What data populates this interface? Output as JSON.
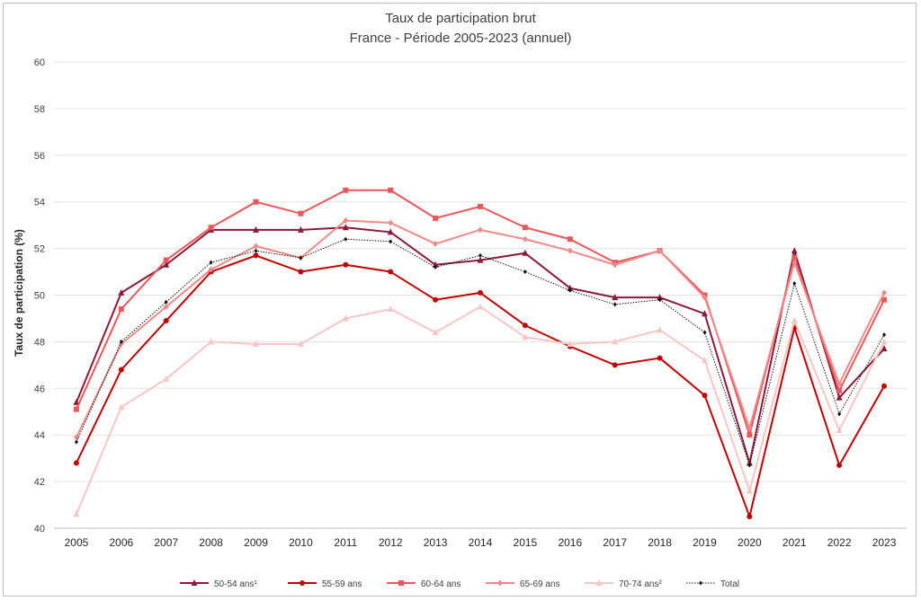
{
  "chart_data": {
    "type": "line",
    "title": "Taux de participation brut",
    "subtitle": "France - Période 2005-2023 (annuel)",
    "xlabel": "",
    "ylabel": "Taux de participation (%)",
    "ylim": [
      40,
      60
    ],
    "yticks": [
      "40",
      "42",
      "44",
      "46",
      "48",
      "50",
      "52",
      "54",
      "56",
      "58",
      "60"
    ],
    "categories": [
      "2005",
      "2006",
      "2007",
      "2008",
      "2009",
      "2010",
      "2011",
      "2012",
      "2013",
      "2014",
      "2015",
      "2016",
      "2017",
      "2018",
      "2019",
      "2020",
      "2021",
      "2022",
      "2023"
    ],
    "grid": true,
    "legend_position": "bottom",
    "series": [
      {
        "name": "50-54 ans¹",
        "color": "#8b1a3a",
        "marker": "triangle",
        "dash": "solid",
        "values": [
          45.4,
          50.1,
          51.3,
          52.8,
          52.8,
          52.8,
          52.9,
          52.7,
          51.3,
          51.5,
          51.8,
          50.3,
          49.9,
          49.9,
          49.2,
          42.8,
          51.9,
          45.6,
          47.7
        ]
      },
      {
        "name": "55-59 ans",
        "color": "#c00000",
        "marker": "circle",
        "dash": "solid",
        "values": [
          42.8,
          46.8,
          48.9,
          51.0,
          51.7,
          51.0,
          51.3,
          51.0,
          49.8,
          50.1,
          48.7,
          47.8,
          47.0,
          47.3,
          45.7,
          40.5,
          48.6,
          42.7,
          46.1
        ]
      },
      {
        "name": "60-64 ans",
        "color": "#e8585a",
        "marker": "square",
        "dash": "solid",
        "values": [
          45.1,
          49.4,
          51.5,
          52.9,
          54.0,
          53.5,
          54.5,
          54.5,
          53.3,
          53.8,
          52.9,
          52.4,
          51.4,
          51.9,
          50.0,
          44.0,
          51.6,
          45.9,
          49.8
        ]
      },
      {
        "name": "65-69 ans",
        "color": "#f08a8a",
        "marker": "diamond",
        "dash": "solid",
        "values": [
          43.9,
          47.9,
          49.5,
          51.1,
          52.1,
          51.6,
          53.2,
          53.1,
          52.2,
          52.8,
          52.4,
          51.9,
          51.3,
          51.9,
          49.9,
          44.3,
          51.4,
          46.2,
          50.1
        ]
      },
      {
        "name": "70-74 ans²",
        "color": "#f6c6c4",
        "marker": "triangle",
        "dash": "solid",
        "values": [
          40.6,
          45.2,
          46.4,
          48.0,
          47.9,
          47.9,
          49.0,
          49.4,
          48.4,
          49.5,
          48.2,
          47.9,
          48.0,
          48.5,
          47.2,
          41.6,
          48.9,
          44.2,
          48.0
        ]
      },
      {
        "name": "Total",
        "color": "#111111",
        "marker": "diamond",
        "dash": "dotted",
        "values": [
          43.7,
          48.0,
          49.7,
          51.4,
          51.9,
          51.6,
          52.4,
          52.3,
          51.2,
          51.7,
          51.0,
          50.2,
          49.6,
          49.8,
          48.4,
          42.7,
          50.5,
          44.9,
          48.3
        ]
      }
    ]
  }
}
